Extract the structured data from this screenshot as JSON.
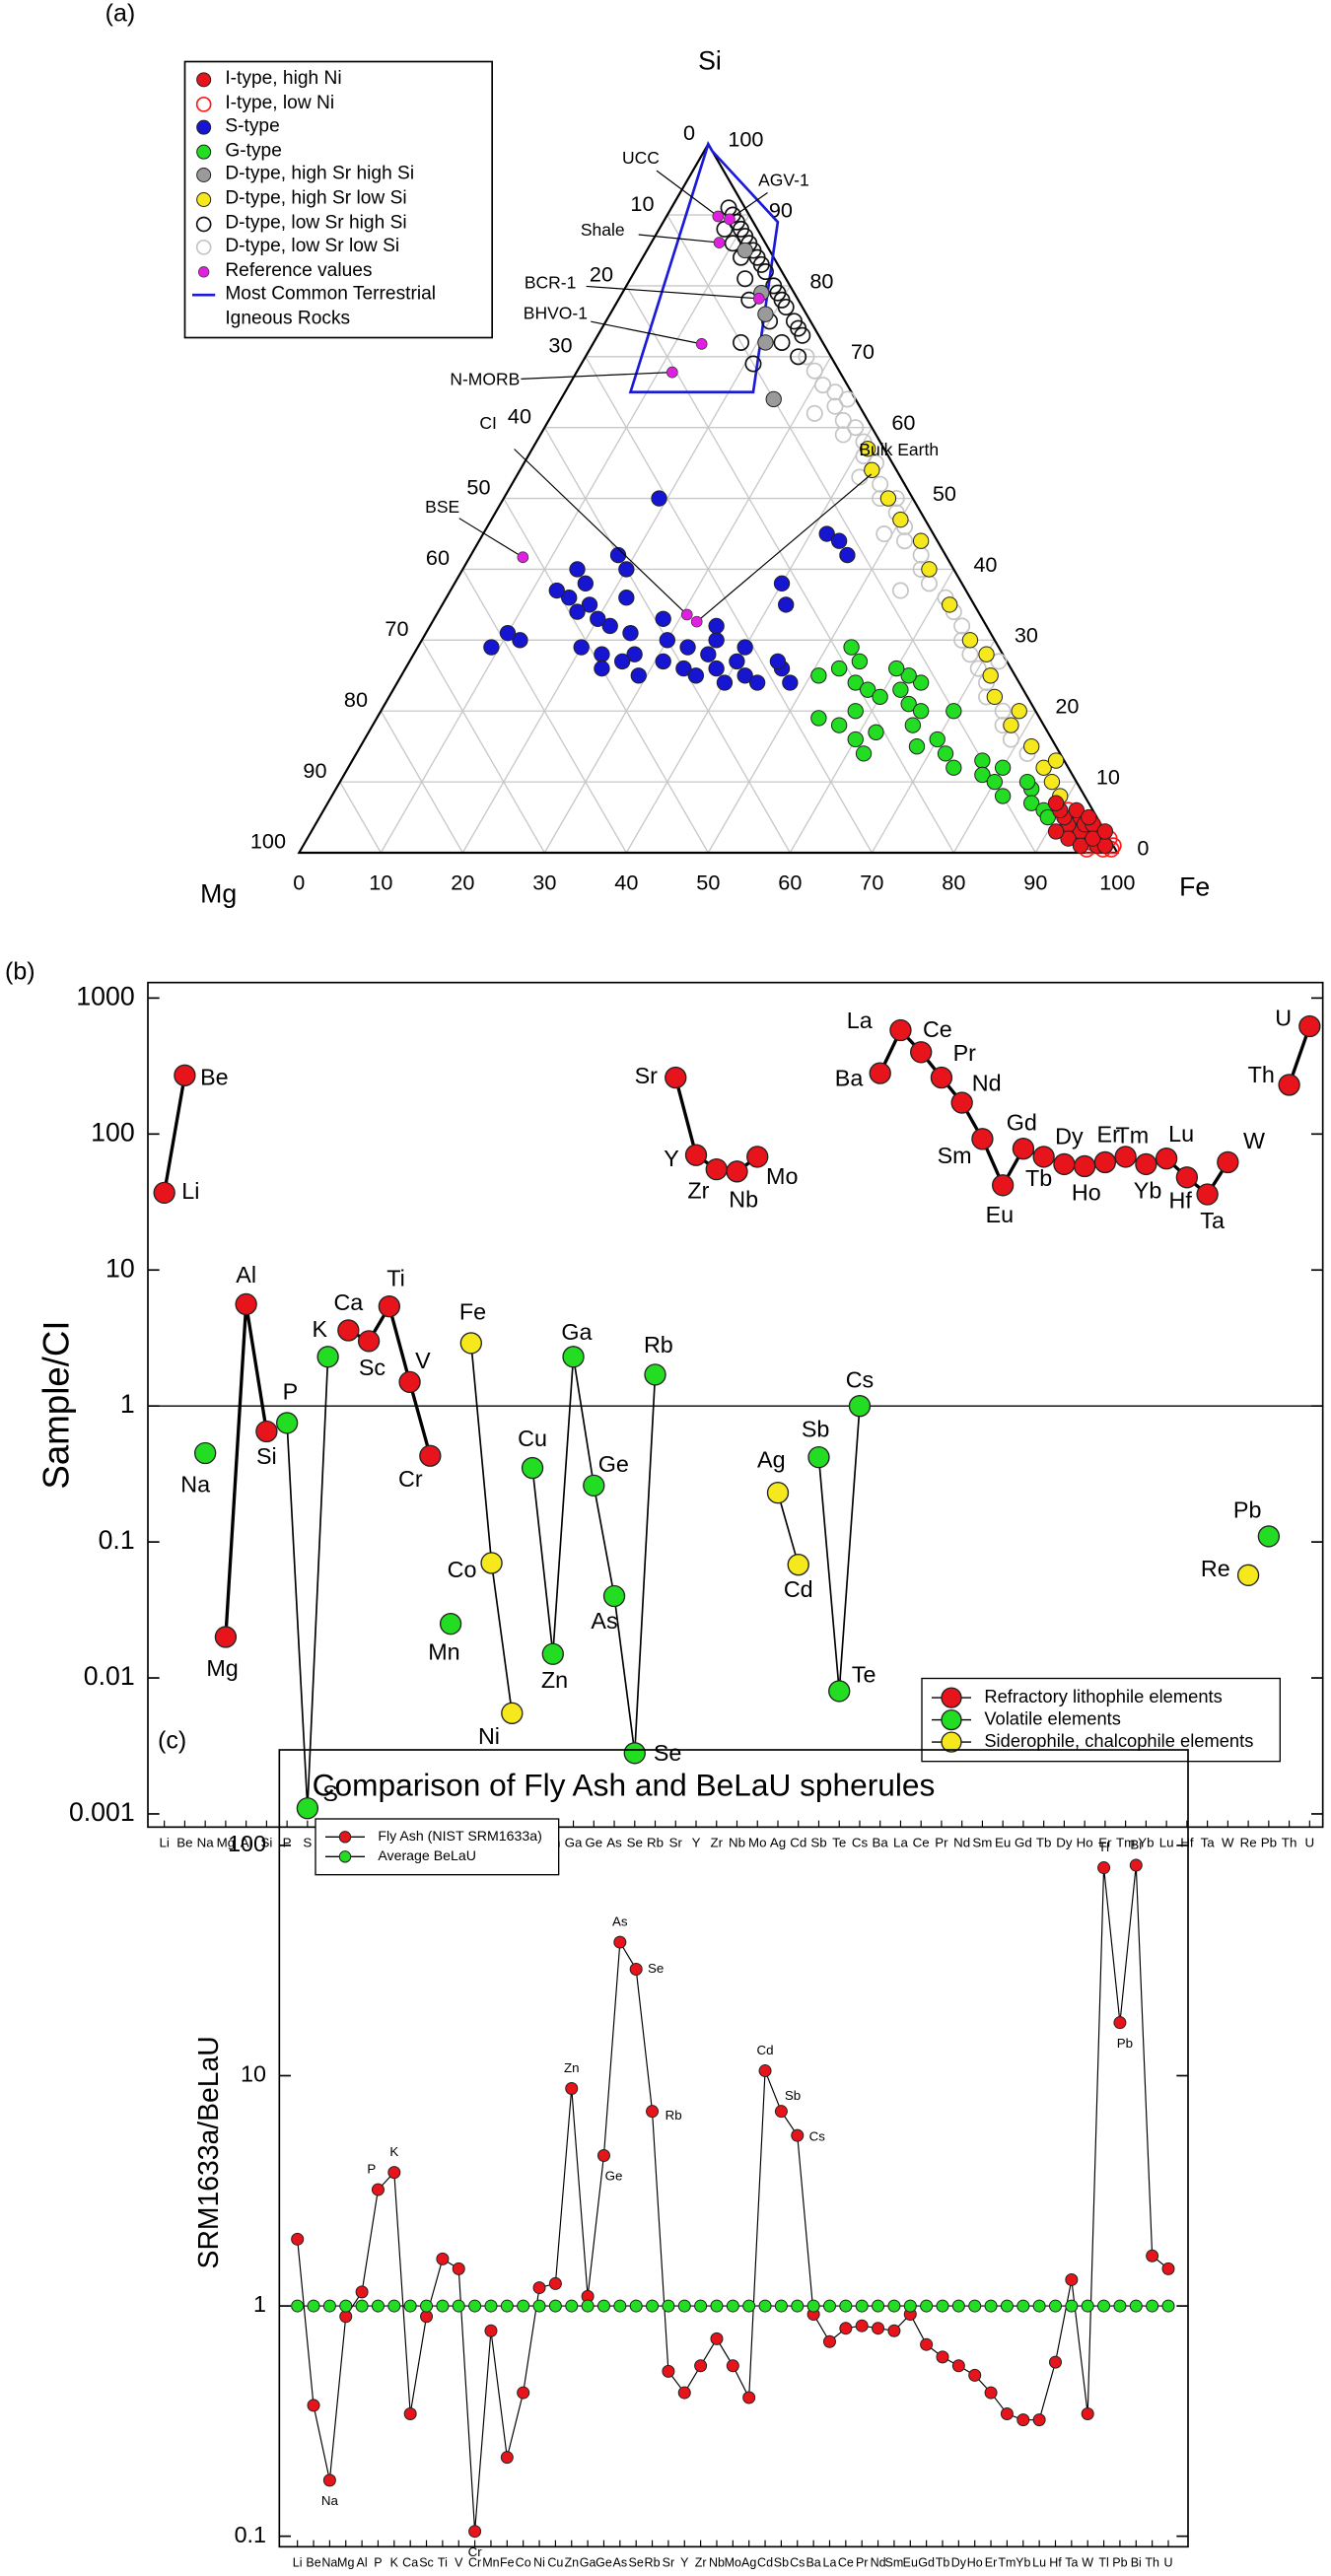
{
  "chart_data": [
    {
      "type": "ternary",
      "panel_label": "(a)",
      "axis_labels": {
        "top": "Si",
        "left": "Mg",
        "right": "Fe"
      },
      "lim": [
        0,
        100
      ],
      "ticks": [
        0,
        10,
        20,
        30,
        40,
        50,
        60,
        70,
        80,
        90,
        100
      ],
      "grid": true,
      "series": [
        {
          "name": "I-type, high Ni",
          "marker": "filled",
          "color": "#e8141c",
          "si": [
            1,
            2,
            3,
            4,
            5,
            6,
            2,
            3,
            5,
            1,
            4,
            7,
            2,
            3,
            1,
            6,
            4,
            2,
            5,
            3
          ],
          "fe": [
            97,
            95,
            94,
            92,
            91,
            90,
            97,
            96,
            93,
            98,
            94,
            89,
            93,
            91,
            95,
            92,
            95,
            96,
            94,
            97
          ]
        },
        {
          "name": "I-type, low Ni",
          "marker": "open",
          "color": "#ff1a1a",
          "si": [
            0.5,
            1,
            2,
            3,
            1.5,
            2.5,
            4,
            3.5,
            0.5,
            1,
            2,
            5,
            4.5,
            3,
            1,
            2,
            6,
            0.5,
            1.5,
            2.5,
            3.5,
            1,
            2,
            3,
            4
          ],
          "fe": [
            99,
            98,
            97,
            96,
            97.5,
            96,
            95,
            95.5,
            98,
            96,
            95,
            93,
            93,
            94,
            97,
            98,
            91,
            96,
            96,
            94,
            93,
            99,
            96,
            95,
            92
          ]
        },
        {
          "name": "S-type",
          "marker": "filled",
          "color": "#1515d2",
          "si": [
            26,
            27,
            25,
            28,
            26,
            24,
            27,
            25,
            28,
            29,
            30,
            31,
            30,
            29,
            26,
            24,
            27,
            32,
            33,
            35,
            36,
            37,
            34,
            38,
            40,
            29,
            28,
            30,
            29,
            31,
            50,
            45,
            44,
            42,
            38,
            35,
            33,
            36,
            40,
            42,
            26,
            27,
            25,
            24,
            32
          ],
          "fe": [
            38,
            40,
            42,
            36,
            34,
            44,
            31,
            29,
            27,
            33,
            30,
            25,
            36,
            40,
            46,
            48,
            45,
            22,
            20,
            18,
            15,
            13,
            17,
            16,
            14,
            20,
            23,
            12,
            9,
            10,
            19,
            42,
            44,
            46,
            40,
            42,
            28,
            22,
            20,
            18,
            24,
            26,
            36,
            40,
            35
          ]
        },
        {
          "name": "G-type",
          "marker": "filled",
          "color": "#22dd22",
          "si": [
            25,
            26,
            27,
            24,
            23,
            22,
            23,
            21,
            20,
            24,
            25,
            26,
            20,
            18,
            16,
            14,
            18,
            16,
            14,
            12,
            13,
            11,
            10,
            8,
            9,
            7,
            6,
            5,
            12,
            10,
            15,
            19,
            17,
            20,
            29
          ],
          "fe": [
            51,
            53,
            55,
            56,
            58,
            60,
            62,
            64,
            66,
            64,
            62,
            60,
            58,
            57,
            60,
            62,
            66,
            70,
            72,
            74,
            77,
            78,
            80,
            82,
            85,
            86,
            88,
            89,
            80,
            84,
            68,
            54,
            62,
            70,
            53
          ]
        },
        {
          "name": "D-type, high Sr high Si",
          "marker": "filled",
          "color": "#9a9a9a",
          "si": [
            79,
            76,
            64,
            72,
            85
          ],
          "fe": [
            17,
            19,
            26,
            21,
            12
          ]
        },
        {
          "name": "D-type, high Sr low Si",
          "marker": "filled",
          "color": "#f5e81c",
          "si": [
            57,
            54,
            50,
            47,
            44,
            40,
            35,
            30,
            25,
            22,
            18,
            15,
            12,
            10,
            8,
            13,
            20,
            28
          ],
          "fe": [
            41,
            43,
            47,
            50,
            54,
            57,
            62,
            67,
            72,
            74,
            78,
            82,
            85,
            87,
            89,
            86,
            78,
            70
          ]
        },
        {
          "name": "D-type, low Sr high Si",
          "marker": "open",
          "color": "#111111",
          "si": [
            91,
            90,
            89,
            88,
            87,
            86,
            85,
            84,
            86,
            83,
            82,
            80,
            79,
            78,
            77,
            75,
            74,
            73,
            72,
            70,
            84,
            88,
            81,
            75,
            69,
            72,
            78
          ],
          "fe": [
            7,
            8,
            9,
            10,
            11,
            12,
            13,
            14,
            10,
            15,
            16,
            18,
            19,
            20,
            21,
            23,
            24,
            25,
            23,
            26,
            12,
            8,
            14,
            20,
            21,
            18,
            16
          ]
        },
        {
          "name": "D-type, low Sr low Si",
          "marker": "open",
          "color": "#c4c4c4",
          "si": [
            70,
            68,
            66,
            65,
            63,
            61,
            60,
            58,
            56,
            55,
            52,
            50,
            48,
            46,
            44,
            42,
            40,
            38,
            36,
            34,
            32,
            30,
            28,
            26,
            24,
            22,
            20,
            18,
            16,
            14,
            62,
            59,
            53,
            45,
            37,
            64,
            50,
            27
          ],
          "fe": [
            27,
            29,
            31,
            33,
            34,
            36,
            38,
            40,
            41,
            43,
            45,
            46,
            49,
            51,
            52,
            55,
            56,
            58,
            61,
            63,
            65,
            66,
            68,
            70,
            72,
            73,
            76,
            77,
            79,
            82,
            32,
            37,
            42,
            49,
            55,
            35,
            48,
            72
          ]
        }
      ],
      "reference": {
        "name": "Reference values",
        "color": "#e020e0",
        "labels": [
          "UCC",
          "AGV-1",
          "Shale",
          "BCR-1",
          "BHVO-1",
          "N-MORB",
          "CI",
          "Bulk Earth",
          "BSE"
        ],
        "si": [
          89.8,
          89.4,
          86.1,
          78.2,
          71.8,
          67.8,
          33.6,
          32.6,
          41.7
        ],
        "fe": [
          6.3,
          7.9,
          8.3,
          17.1,
          13.3,
          11.7,
          30.6,
          32.3,
          6.5
        ]
      },
      "region": {
        "name": "Most Common Terrestrial Igneous Rocks",
        "color": "#1a1ad8",
        "si": [
          100,
          99,
          89,
          65,
          65
        ],
        "fe": [
          0,
          1,
          14,
          23,
          8
        ]
      }
    },
    {
      "type": "line",
      "panel_label": "(b)",
      "ylabel": "Sample/CI",
      "yscale": "log",
      "categories": [
        "Li",
        "Be",
        "Na",
        "Mg",
        "Al",
        "Si",
        "P",
        "S",
        "K",
        "Ca",
        "Sc",
        "Ti",
        "V",
        "Cr",
        "Mn",
        "Fe",
        "Co",
        "Ni",
        "Cu",
        "Zn",
        "Ga",
        "Ge",
        "As",
        "Se",
        "Rb",
        "Sr",
        "Y",
        "Zr",
        "Nb",
        "Mo",
        "Ag",
        "Cd",
        "Sb",
        "Te",
        "Cs",
        "Ba",
        "La",
        "Ce",
        "Pr",
        "Nd",
        "Sm",
        "Eu",
        "Gd",
        "Tb",
        "Dy",
        "Ho",
        "Er",
        "Tm",
        "Yb",
        "Lu",
        "Hf",
        "Ta",
        "W",
        "Re",
        "Pb",
        "Th",
        "U"
      ],
      "ylim": [
        0.0008,
        1300
      ],
      "yticks": [
        0.001,
        0.01,
        0.1,
        1,
        10,
        100,
        1000
      ],
      "reference_line": 1,
      "legend": "lower right",
      "series": [
        {
          "name": "Refractory lithophile elements",
          "color": "#e8141c",
          "line_width": 2,
          "values": [
            37,
            270,
            null,
            0.02,
            5.6,
            0.65,
            null,
            null,
            null,
            3.6,
            3.0,
            5.4,
            1.5,
            0.43,
            null,
            null,
            null,
            null,
            null,
            null,
            null,
            null,
            null,
            null,
            null,
            260,
            70,
            55,
            53,
            68,
            null,
            null,
            null,
            null,
            null,
            280,
            580,
            400,
            260,
            170,
            92,
            42,
            78,
            68,
            60,
            58,
            62,
            68,
            60,
            66,
            48,
            36,
            62,
            null,
            null,
            230,
            620
          ]
        },
        {
          "name": "Volatile elements",
          "color": "#22dd22",
          "line_width": 1,
          "values": [
            null,
            null,
            0.45,
            null,
            null,
            null,
            0.75,
            0.0011,
            2.3,
            null,
            null,
            null,
            null,
            null,
            0.025,
            null,
            null,
            null,
            0.35,
            0.015,
            2.3,
            0.26,
            0.04,
            0.0028,
            1.7,
            null,
            null,
            null,
            null,
            null,
            null,
            null,
            0.42,
            0.008,
            1,
            null,
            null,
            null,
            null,
            null,
            null,
            null,
            null,
            null,
            null,
            null,
            null,
            null,
            null,
            null,
            null,
            null,
            null,
            null,
            0.11,
            null,
            null
          ]
        },
        {
          "name": "Siderophile, chalcophile elements",
          "color": "#f5e81c",
          "line_width": 1,
          "values": [
            null,
            null,
            null,
            null,
            null,
            null,
            null,
            null,
            null,
            null,
            null,
            null,
            null,
            null,
            null,
            2.9,
            0.07,
            0.0055,
            null,
            null,
            null,
            null,
            null,
            null,
            null,
            null,
            null,
            null,
            null,
            null,
            0.23,
            0.068,
            null,
            null,
            null,
            null,
            null,
            null,
            null,
            null,
            null,
            null,
            null,
            null,
            null,
            null,
            null,
            null,
            null,
            null,
            null,
            null,
            null,
            0.057,
            null,
            null,
            null
          ]
        }
      ]
    },
    {
      "type": "line",
      "panel_label": "(c)",
      "title": "Comparison of Fly Ash and BeLaU spherules",
      "ylabel": "SRM1633a/BeLaU",
      "yscale": "log",
      "categories": [
        "Li",
        "Be",
        "Na",
        "Mg",
        "Al",
        "P",
        "K",
        "Ca",
        "Sc",
        "Ti",
        "V",
        "Cr",
        "Mn",
        "Fe",
        "Co",
        "Ni",
        "Cu",
        "Zn",
        "Ga",
        "Ge",
        "As",
        "Se",
        "Rb",
        "Sr",
        "Y",
        "Zr",
        "Nb",
        "Mo",
        "Ag",
        "Cd",
        "Sb",
        "Cs",
        "Ba",
        "La",
        "Ce",
        "Pr",
        "Nd",
        "Sm",
        "Eu",
        "Gd",
        "Tb",
        "Dy",
        "Ho",
        "Er",
        "Tm",
        "Yb",
        "Lu",
        "Hf",
        "Ta",
        "W",
        "Tl",
        "Pb",
        "Bi",
        "Th",
        "U"
      ],
      "ylim": [
        0.09,
        260
      ],
      "yticks": [
        0.1,
        1,
        10,
        100
      ],
      "legend": "upper left",
      "series": [
        {
          "name": "Fly Ash (NIST SRM1633a)",
          "color": "#e8141c",
          "values": [
            1.95,
            0.37,
            0.175,
            0.9,
            1.15,
            3.2,
            3.8,
            0.34,
            0.9,
            1.6,
            1.45,
            0.105,
            0.78,
            0.22,
            0.42,
            1.2,
            1.25,
            8.8,
            1.1,
            4.5,
            38,
            29,
            7,
            0.52,
            0.42,
            0.55,
            0.72,
            0.55,
            0.4,
            10.5,
            7,
            5.5,
            0.92,
            0.7,
            0.8,
            0.82,
            0.8,
            0.78,
            0.92,
            0.68,
            0.6,
            0.55,
            0.5,
            0.42,
            0.34,
            0.32,
            0.32,
            0.57,
            1.3,
            0.34,
            80,
            17,
            82,
            1.65,
            1.45
          ]
        },
        {
          "name": "Average BeLaU",
          "color": "#22dd22",
          "values": [
            1,
            1,
            1,
            1,
            1,
            1,
            1,
            1,
            1,
            1,
            1,
            1,
            1,
            1,
            1,
            1,
            1,
            1,
            1,
            1,
            1,
            1,
            1,
            1,
            1,
            1,
            1,
            1,
            1,
            1,
            1,
            1,
            1,
            1,
            1,
            1,
            1,
            1,
            1,
            1,
            1,
            1,
            1,
            1,
            1,
            1,
            1,
            1,
            1,
            1,
            1,
            1,
            1,
            1,
            1
          ]
        }
      ],
      "point_labels": [
        null,
        null,
        "Na",
        null,
        null,
        "P",
        "K",
        null,
        null,
        null,
        null,
        "Cr",
        null,
        null,
        null,
        null,
        null,
        "Zn",
        null,
        "Ge",
        "As",
        "Se",
        "Rb",
        null,
        null,
        null,
        null,
        null,
        null,
        "Cd",
        "Sb",
        "Cs",
        null,
        null,
        null,
        null,
        null,
        null,
        null,
        null,
        null,
        null,
        null,
        null,
        null,
        null,
        null,
        null,
        null,
        null,
        "Tl",
        "Pb",
        "Bi",
        null,
        null
      ]
    }
  ]
}
